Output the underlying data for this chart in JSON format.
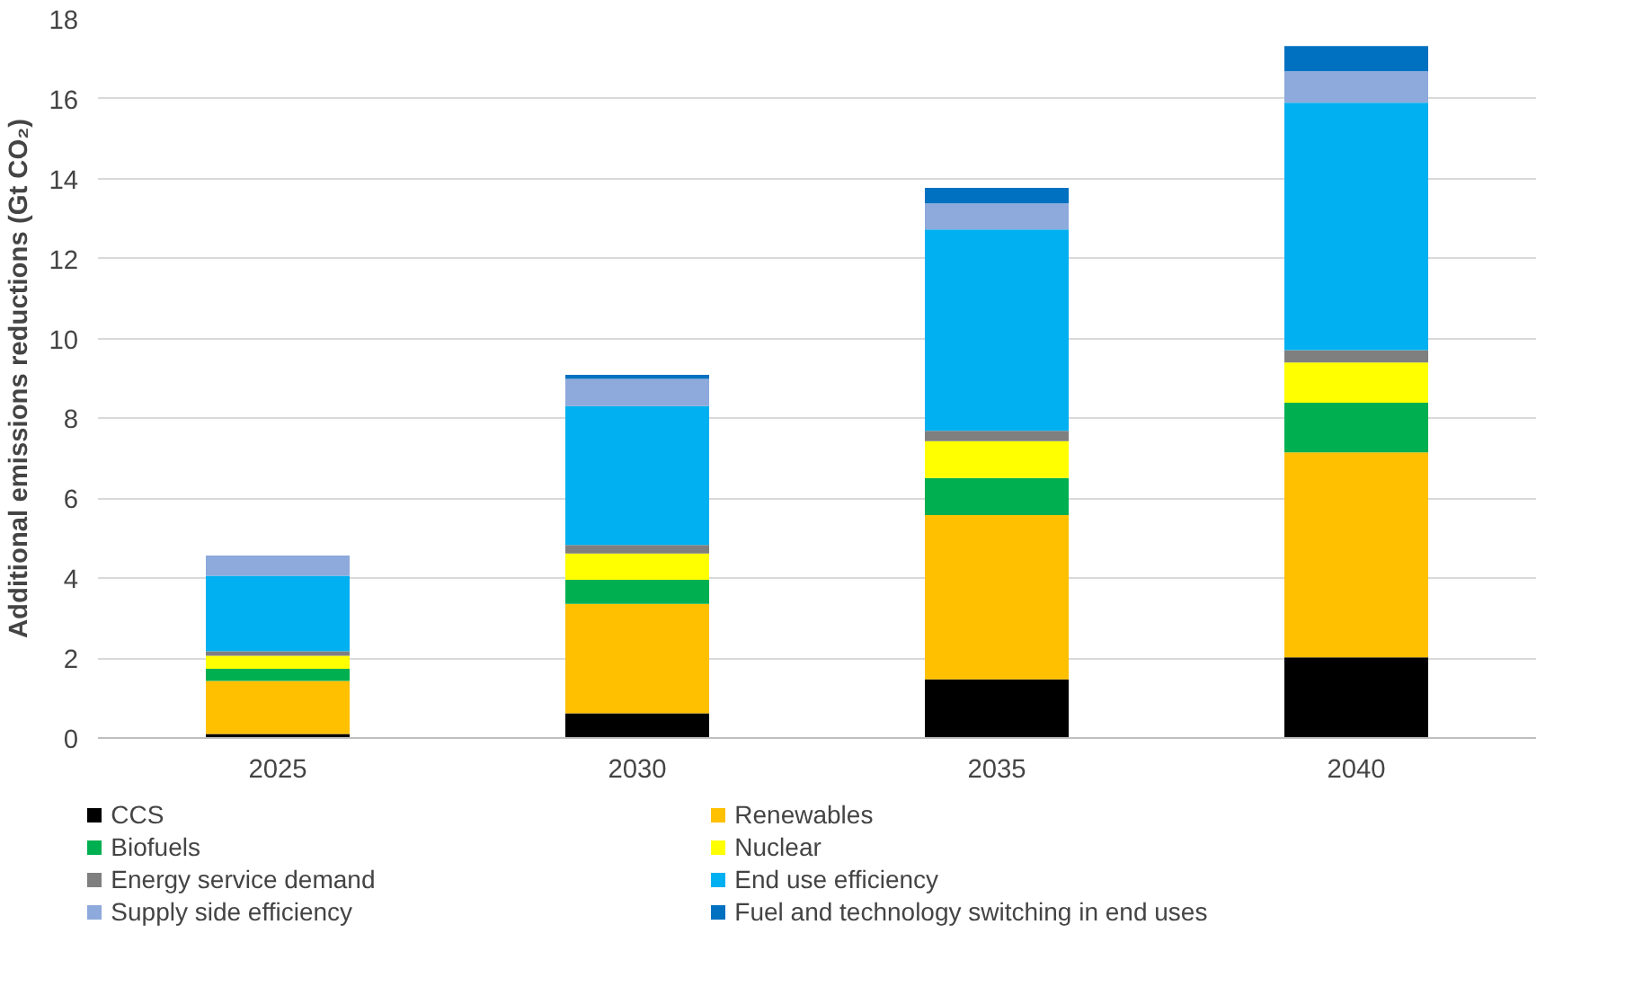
{
  "chart_data": {
    "type": "bar",
    "stacked": true,
    "ylabel": "Additional emissions reductions (Gt CO₂)",
    "categories": [
      "2025",
      "2030",
      "2035",
      "2040"
    ],
    "ylim": [
      0,
      18
    ],
    "yticks": [
      0,
      2,
      4,
      6,
      8,
      10,
      12,
      14,
      16,
      18
    ],
    "grid": "y",
    "legend": "bottom",
    "series": [
      {
        "name": "CCS",
        "color": "#000000",
        "values": [
          0.1,
          0.62,
          1.47,
          2.02
        ]
      },
      {
        "name": "Renewables",
        "color": "#ffc000",
        "values": [
          1.33,
          2.74,
          4.11,
          5.13
        ]
      },
      {
        "name": "Biofuels",
        "color": "#00b050",
        "values": [
          0.3,
          0.6,
          0.93,
          1.24
        ]
      },
      {
        "name": "Nuclear",
        "color": "#ffff00",
        "values": [
          0.33,
          0.66,
          0.92,
          1.01
        ]
      },
      {
        "name": "Energy service demand",
        "color": "#7f7f7f",
        "values": [
          0.11,
          0.21,
          0.26,
          0.31
        ]
      },
      {
        "name": "End use efficiency",
        "color": "#00b0f0",
        "values": [
          1.89,
          3.48,
          5.04,
          6.19
        ]
      },
      {
        "name": "Supply side efficiency",
        "color": "#8ea9db",
        "values": [
          0.51,
          0.68,
          0.65,
          0.79
        ]
      },
      {
        "name": "Fuel and technology switching in end uses",
        "color": "#0070c0",
        "values": [
          0,
          0.1,
          0.39,
          0.63
        ]
      }
    ]
  }
}
